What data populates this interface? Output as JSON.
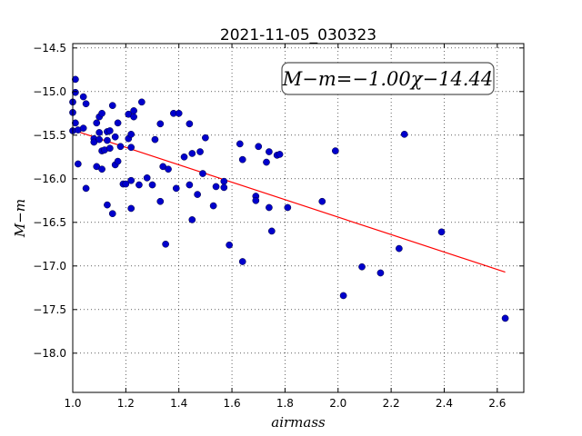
{
  "chart_data": {
    "type": "scatter",
    "title": "2021-11-05_030323",
    "xlabel": "airmass",
    "ylabel": "M−m",
    "xlim": [
      1.0,
      2.7
    ],
    "ylim": [
      -18.45,
      -14.45
    ],
    "y_inverted": true,
    "grid": true,
    "x_ticks": [
      1.0,
      1.2,
      1.4,
      1.6,
      1.8,
      2.0,
      2.2,
      2.4,
      2.6
    ],
    "x_tick_labels": [
      "1.0",
      "1.2",
      "1.4",
      "1.6",
      "1.8",
      "2.0",
      "2.2",
      "2.4",
      "2.6"
    ],
    "y_ticks": [
      -14.5,
      -15.0,
      -15.5,
      -16.0,
      -16.5,
      -17.0,
      -17.5,
      -18.0
    ],
    "y_tick_labels": [
      "−14.5",
      "−15.0",
      "−15.5",
      "−16.0",
      "−16.5",
      "−17.0",
      "−17.5",
      "−18.0"
    ],
    "annotation": "M−m=−1.00χ−14.44",
    "marker_color": "#0000cc",
    "fit_color": "#ff0000",
    "fit_line": {
      "slope": -1.0,
      "intercept": -14.44,
      "x_range": [
        1.0,
        2.63
      ]
    },
    "points": [
      {
        "x": 1.0,
        "y": -15.12
      },
      {
        "x": 1.0,
        "y": -15.24
      },
      {
        "x": 1.0,
        "y": -15.45
      },
      {
        "x": 1.01,
        "y": -15.36
      },
      {
        "x": 1.01,
        "y": -14.86
      },
      {
        "x": 1.01,
        "y": -15.01
      },
      {
        "x": 1.02,
        "y": -15.44
      },
      {
        "x": 1.02,
        "y": -15.83
      },
      {
        "x": 1.04,
        "y": -15.06
      },
      {
        "x": 1.04,
        "y": -15.42
      },
      {
        "x": 1.05,
        "y": -16.11
      },
      {
        "x": 1.05,
        "y": -15.14
      },
      {
        "x": 1.08,
        "y": -15.54
      },
      {
        "x": 1.08,
        "y": -15.58
      },
      {
        "x": 1.09,
        "y": -15.36
      },
      {
        "x": 1.09,
        "y": -15.86
      },
      {
        "x": 1.1,
        "y": -15.47
      },
      {
        "x": 1.1,
        "y": -15.55
      },
      {
        "x": 1.1,
        "y": -15.29
      },
      {
        "x": 1.11,
        "y": -15.25
      },
      {
        "x": 1.11,
        "y": -15.89
      },
      {
        "x": 1.11,
        "y": -15.68
      },
      {
        "x": 1.12,
        "y": -15.67
      },
      {
        "x": 1.13,
        "y": -15.46
      },
      {
        "x": 1.13,
        "y": -15.56
      },
      {
        "x": 1.13,
        "y": -16.3
      },
      {
        "x": 1.14,
        "y": -15.45
      },
      {
        "x": 1.14,
        "y": -15.65
      },
      {
        "x": 1.15,
        "y": -16.4
      },
      {
        "x": 1.15,
        "y": -15.16
      },
      {
        "x": 1.16,
        "y": -15.52
      },
      {
        "x": 1.16,
        "y": -15.84
      },
      {
        "x": 1.17,
        "y": -15.36
      },
      {
        "x": 1.17,
        "y": -15.8
      },
      {
        "x": 1.18,
        "y": -15.63
      },
      {
        "x": 1.19,
        "y": -16.06
      },
      {
        "x": 1.2,
        "y": -16.06
      },
      {
        "x": 1.21,
        "y": -15.26
      },
      {
        "x": 1.21,
        "y": -15.54
      },
      {
        "x": 1.22,
        "y": -15.64
      },
      {
        "x": 1.22,
        "y": -15.49
      },
      {
        "x": 1.22,
        "y": -16.02
      },
      {
        "x": 1.22,
        "y": -16.34
      },
      {
        "x": 1.23,
        "y": -15.22
      },
      {
        "x": 1.23,
        "y": -15.29
      },
      {
        "x": 1.25,
        "y": -16.07
      },
      {
        "x": 1.26,
        "y": -15.12
      },
      {
        "x": 1.28,
        "y": -15.99
      },
      {
        "x": 1.3,
        "y": -16.07
      },
      {
        "x": 1.31,
        "y": -15.55
      },
      {
        "x": 1.33,
        "y": -15.37
      },
      {
        "x": 1.33,
        "y": -16.26
      },
      {
        "x": 1.34,
        "y": -15.86
      },
      {
        "x": 1.35,
        "y": -16.75
      },
      {
        "x": 1.36,
        "y": -15.89
      },
      {
        "x": 1.38,
        "y": -15.25
      },
      {
        "x": 1.39,
        "y": -16.11
      },
      {
        "x": 1.4,
        "y": -15.25
      },
      {
        "x": 1.42,
        "y": -15.75
      },
      {
        "x": 1.44,
        "y": -15.37
      },
      {
        "x": 1.44,
        "y": -16.07
      },
      {
        "x": 1.45,
        "y": -16.47
      },
      {
        "x": 1.45,
        "y": -15.71
      },
      {
        "x": 1.47,
        "y": -16.18
      },
      {
        "x": 1.48,
        "y": -15.69
      },
      {
        "x": 1.49,
        "y": -15.94
      },
      {
        "x": 1.5,
        "y": -15.53
      },
      {
        "x": 1.53,
        "y": -16.31
      },
      {
        "x": 1.54,
        "y": -16.09
      },
      {
        "x": 1.57,
        "y": -16.03
      },
      {
        "x": 1.57,
        "y": -16.1
      },
      {
        "x": 1.59,
        "y": -16.76
      },
      {
        "x": 1.63,
        "y": -15.6
      },
      {
        "x": 1.64,
        "y": -15.78
      },
      {
        "x": 1.64,
        "y": -16.95
      },
      {
        "x": 1.69,
        "y": -16.2
      },
      {
        "x": 1.69,
        "y": -16.25
      },
      {
        "x": 1.7,
        "y": -15.63
      },
      {
        "x": 1.73,
        "y": -15.81
      },
      {
        "x": 1.74,
        "y": -15.69
      },
      {
        "x": 1.74,
        "y": -16.33
      },
      {
        "x": 1.75,
        "y": -16.6
      },
      {
        "x": 1.77,
        "y": -15.73
      },
      {
        "x": 1.78,
        "y": -15.72
      },
      {
        "x": 1.81,
        "y": -16.33
      },
      {
        "x": 1.94,
        "y": -16.26
      },
      {
        "x": 1.99,
        "y": -15.68
      },
      {
        "x": 2.02,
        "y": -17.34
      },
      {
        "x": 2.09,
        "y": -17.01
      },
      {
        "x": 2.16,
        "y": -17.08
      },
      {
        "x": 2.23,
        "y": -16.8
      },
      {
        "x": 2.25,
        "y": -15.49
      },
      {
        "x": 2.39,
        "y": -16.61
      },
      {
        "x": 2.63,
        "y": -17.6
      }
    ]
  }
}
